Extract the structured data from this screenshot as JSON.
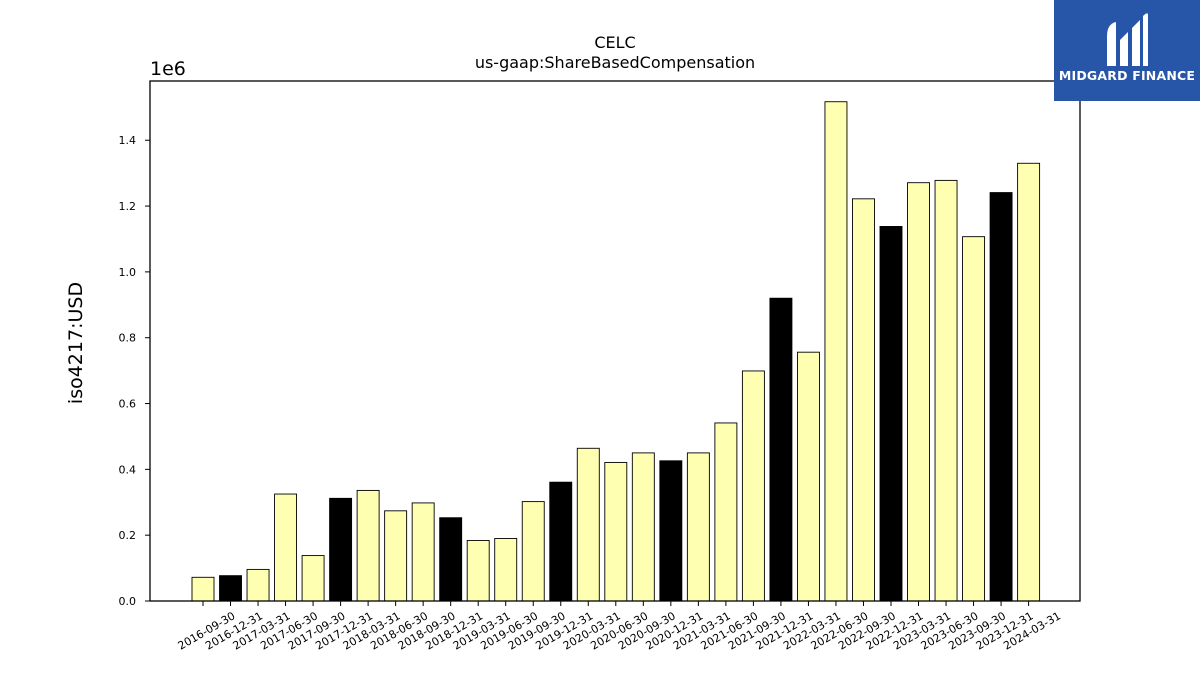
{
  "chart_data": {
    "type": "bar",
    "title": "CELC",
    "subtitle": "us-gaap:ShareBasedCompensation",
    "ylabel": "iso4217:USD",
    "offset_text": "1e6",
    "ylim": [
      0,
      1580000
    ],
    "yticks": [
      0,
      200000,
      400000,
      600000,
      800000,
      1000000,
      1200000,
      1400000
    ],
    "ytick_labels": [
      "0.0",
      "0.2",
      "0.4",
      "0.6",
      "0.8",
      "1.0",
      "1.2",
      "1.4"
    ],
    "grid": false,
    "categories": [
      "2016-09-30",
      "2016-12-31",
      "2017-03-31",
      "2017-06-30",
      "2017-09-30",
      "2017-12-31",
      "2018-03-31",
      "2018-06-30",
      "2018-09-30",
      "2018-12-31",
      "2019-03-31",
      "2019-06-30",
      "2019-09-30",
      "2019-12-31",
      "2020-03-31",
      "2020-06-30",
      "2020-09-30",
      "2020-12-31",
      "2021-03-31",
      "2021-06-30",
      "2021-09-30",
      "2021-12-31",
      "2022-03-31",
      "2022-06-30",
      "2022-09-30",
      "2022-12-31",
      "2023-03-31",
      "2023-06-30",
      "2023-09-30",
      "2023-12-31",
      "2024-03-31"
    ],
    "values": [
      72000,
      77000,
      96000,
      325000,
      138000,
      312000,
      336000,
      274000,
      298000,
      253000,
      184000,
      190000,
      302000,
      361000,
      464000,
      421000,
      450000,
      426000,
      450000,
      541000,
      699000,
      920000,
      756000,
      1517000,
      1222000,
      1138000,
      1271000,
      1278000,
      1107000,
      1241000,
      1330000
    ],
    "fiscal_year_end": [
      false,
      true,
      false,
      false,
      false,
      true,
      false,
      false,
      false,
      true,
      false,
      false,
      false,
      true,
      false,
      false,
      false,
      true,
      false,
      false,
      false,
      true,
      false,
      false,
      false,
      true,
      false,
      false,
      false,
      true,
      false
    ],
    "colors": {
      "quarter": "#ffffb2",
      "year_end": "#000000",
      "edge": "#000000"
    }
  },
  "logo": {
    "text": "MIDGARD FINANCE",
    "background": "#2756a8"
  }
}
